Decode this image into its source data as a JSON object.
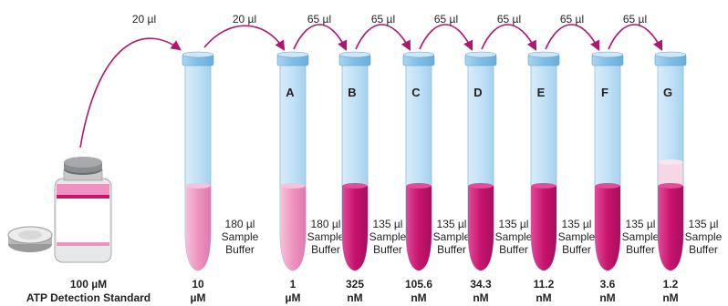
{
  "transfers": [
    {
      "volume": "20 µl"
    },
    {
      "volume": "20 µl"
    },
    {
      "volume": "65 µl"
    },
    {
      "volume": "65 µl"
    },
    {
      "volume": "65 µl"
    },
    {
      "volume": "65 µl"
    },
    {
      "volume": "65 µl"
    },
    {
      "volume": "65 µl"
    }
  ],
  "tubes": [
    {
      "letter": "",
      "buffer_volume": "180 µl",
      "buffer_line1": "Sample",
      "buffer_line2": "Buffer",
      "conc_value": "10",
      "conc_unit": "µM",
      "fill": "light"
    },
    {
      "letter": "A",
      "buffer_volume": "180 µl",
      "buffer_line1": "Sample",
      "buffer_line2": "Buffer",
      "conc_value": "1",
      "conc_unit": "µM",
      "fill": "light"
    },
    {
      "letter": "B",
      "buffer_volume": "135 µl",
      "buffer_line1": "Sample",
      "buffer_line2": "Buffer",
      "conc_value": "325",
      "conc_unit": "nM",
      "fill": "dark"
    },
    {
      "letter": "C",
      "buffer_volume": "135 µl",
      "buffer_line1": "Sample",
      "buffer_line2": "Buffer",
      "conc_value": "105.6",
      "conc_unit": "nM",
      "fill": "dark"
    },
    {
      "letter": "D",
      "buffer_volume": "135 µl",
      "buffer_line1": "Sample",
      "buffer_line2": "Buffer",
      "conc_value": "34.3",
      "conc_unit": "nM",
      "fill": "dark"
    },
    {
      "letter": "E",
      "buffer_volume": "135 µl",
      "buffer_line1": "Sample",
      "buffer_line2": "Buffer",
      "conc_value": "11.2",
      "conc_unit": "nM",
      "fill": "dark"
    },
    {
      "letter": "F",
      "buffer_volume": "135 µl",
      "buffer_line1": "Sample",
      "buffer_line2": "Buffer",
      "conc_value": "3.6",
      "conc_unit": "nM",
      "fill": "dark"
    },
    {
      "letter": "G",
      "buffer_volume": "135 µl",
      "buffer_line1": "Sample",
      "buffer_line2": "Buffer",
      "conc_value": "1.2",
      "conc_unit": "nM",
      "fill": "dark_with_removed"
    }
  ],
  "stock": {
    "conc_value": "100 µM",
    "name": "ATP Detection Standard"
  },
  "colors": {
    "tube_body": "#bfe0f5",
    "tube_edge": "#8fbfe0",
    "cap": "#8cc4e8",
    "liquid_dark": "#c8136f",
    "liquid_light": "#ee93bf",
    "liquid_removed": "#f7d6e6",
    "arrow": "#b0166e",
    "text": "#231f20"
  }
}
